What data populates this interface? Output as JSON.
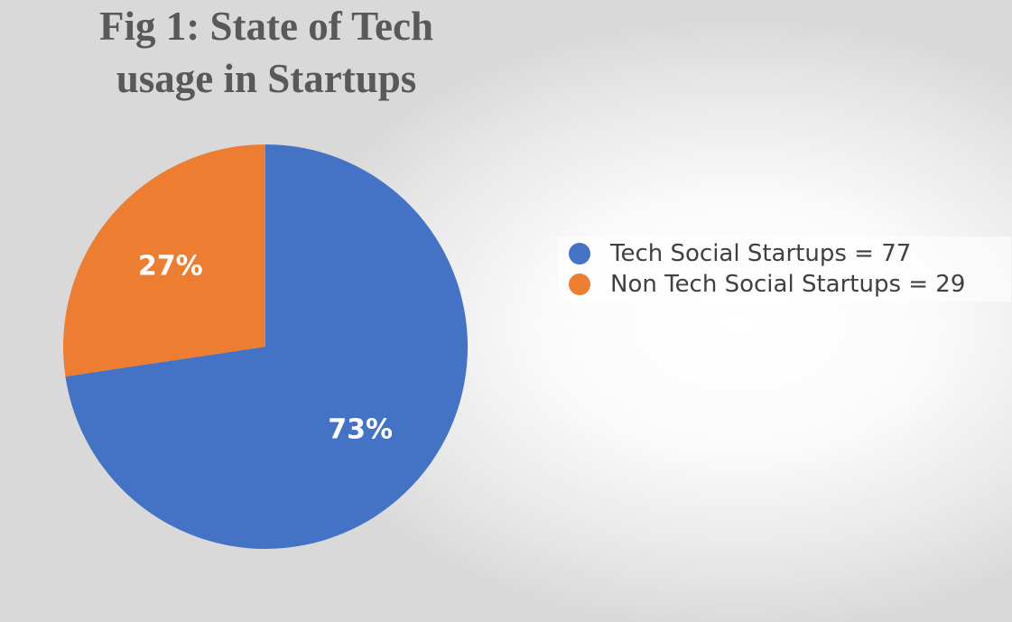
{
  "chart_data": {
    "type": "pie",
    "title": "Fig 1: State of Tech usage in Startups",
    "title_lines": [
      "Fig 1: State of Tech",
      "usage in Startups"
    ],
    "slices": [
      {
        "name": "Tech Social Startups = 77",
        "value": 77,
        "label": "73%",
        "color": "#4472C4"
      },
      {
        "name": "Non Tech Social Startups = 29",
        "value": 29,
        "label": "27%",
        "color": "#ED7D31"
      }
    ],
    "legend_placement": "right"
  }
}
